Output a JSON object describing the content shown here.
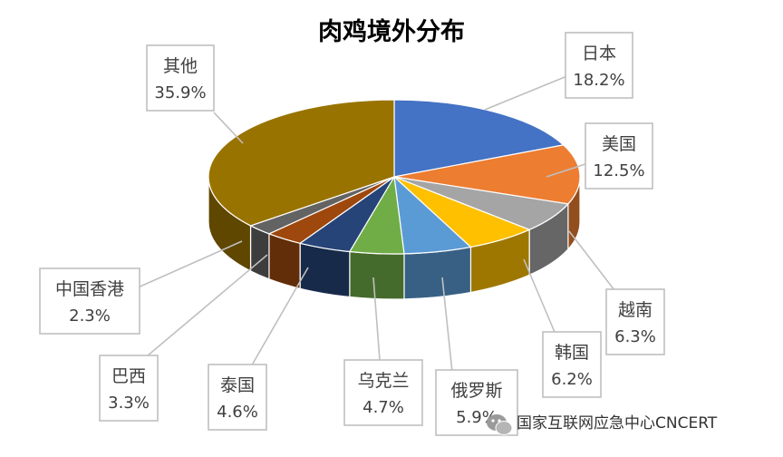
{
  "chart_data": {
    "type": "pie",
    "title": "肉鸡境外分布",
    "slices": [
      {
        "label": "日本",
        "value": 18.2,
        "value_text": "18.2%",
        "color": "#4472C4"
      },
      {
        "label": "美国",
        "value": 12.5,
        "value_text": "12.5%",
        "color": "#ED7D31"
      },
      {
        "label": "越南",
        "value": 6.3,
        "value_text": "6.3%",
        "color": "#A5A5A5"
      },
      {
        "label": "韩国",
        "value": 6.2,
        "value_text": "6.2%",
        "color": "#FFC000"
      },
      {
        "label": "俄罗斯",
        "value": 5.9,
        "value_text": "5.9%",
        "color": "#5B9BD5"
      },
      {
        "label": "乌克兰",
        "value": 4.7,
        "value_text": "4.7%",
        "color": "#70AD47"
      },
      {
        "label": "泰国",
        "value": 4.6,
        "value_text": "4.6%",
        "color": "#264478"
      },
      {
        "label": "巴西",
        "value": 3.3,
        "value_text": "3.3%",
        "color": "#9E480E"
      },
      {
        "label": "中国香港",
        "value": 2.3,
        "value_text": "2.3%",
        "color": "#636363"
      },
      {
        "label": "其他",
        "value": 35.9,
        "value_text": "35.9%",
        "color": "#997300"
      }
    ],
    "legend": "none",
    "style": "3d-pie-with-callouts"
  },
  "watermark": {
    "text": "国家互联网应急中心CNCERT",
    "icon": "wechat-icon"
  }
}
